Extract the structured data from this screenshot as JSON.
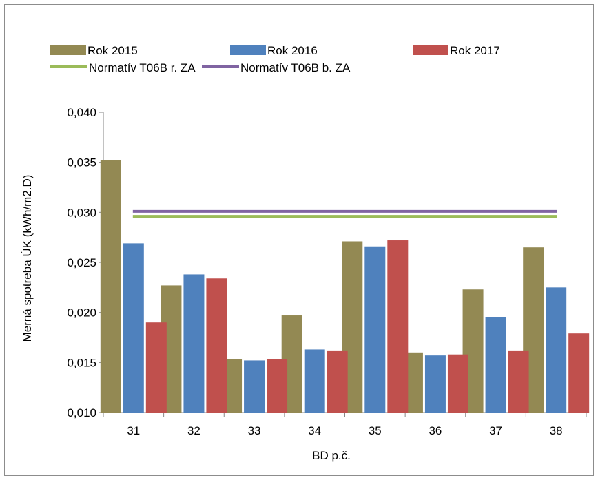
{
  "chart_data": {
    "type": "bar",
    "title": "",
    "xlabel": "BD p.č.",
    "ylabel": "Merná spotreba ÚK (kWh/m2.D)",
    "categories": [
      "31",
      "32",
      "33",
      "34",
      "35",
      "36",
      "37",
      "38"
    ],
    "ylim": [
      0.01,
      0.04
    ],
    "yticks": [
      "0,010",
      "0,015",
      "0,020",
      "0,025",
      "0,030",
      "0,035",
      "0,040"
    ],
    "ytick_values": [
      0.01,
      0.015,
      0.02,
      0.025,
      0.03,
      0.035,
      0.04
    ],
    "grid": false,
    "legend_position": "top",
    "series": [
      {
        "name": "Rok 2015",
        "color": "#938953",
        "values": [
          0.0352,
          0.0227,
          0.0153,
          0.0197,
          0.0271,
          0.016,
          0.0223,
          0.0265
        ]
      },
      {
        "name": "Rok 2016",
        "color": "#4f81bd",
        "values": [
          0.0269,
          0.0238,
          0.0152,
          0.0163,
          0.0266,
          0.0157,
          0.0195,
          0.0225
        ]
      },
      {
        "name": "Rok 2017",
        "color": "#c0504d",
        "values": [
          0.019,
          0.0234,
          0.0153,
          0.0162,
          0.0272,
          0.0158,
          0.0162,
          0.0179
        ]
      }
    ],
    "reference_lines": [
      {
        "name": "Normatív  T06B r. ZA",
        "color": "#9bbb59",
        "value": 0.0296
      },
      {
        "name": "Normatív  T06B b. ZA",
        "color": "#8064a2",
        "value": 0.0301
      }
    ]
  }
}
